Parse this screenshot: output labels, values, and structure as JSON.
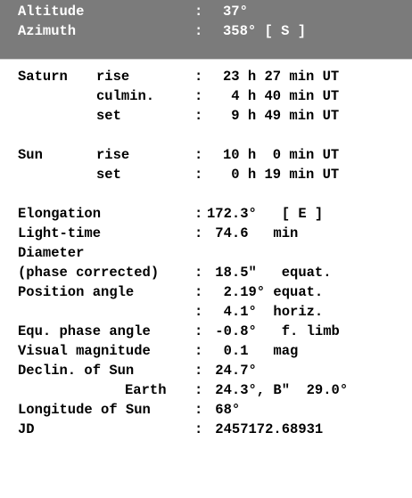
{
  "header": {
    "altitude_label": "Altitude",
    "altitude_value": "37°",
    "azimuth_label": "Azimuth",
    "azimuth_value": "358° [ S ]"
  },
  "saturn": {
    "name": "Saturn",
    "rise_label": "rise",
    "rise_value": "23 h 27 min UT",
    "culmin_label": "culmin.",
    "culmin_value": " 4 h 40 min UT",
    "set_label": "set",
    "set_value": " 9 h 49 min UT"
  },
  "sun": {
    "name": "Sun",
    "rise_label": "rise",
    "rise_value": "10 h  0 min UT",
    "set_label": "set",
    "set_value": " 0 h 19 min UT"
  },
  "details": {
    "elongation_label": "Elongation",
    "elongation_value": "172.3°   [ E ]",
    "light_time_label": "Light-time",
    "light_time_value": " 74.6   min",
    "diameter_label": "Diameter",
    "phase_corrected_label": "(phase corrected)",
    "phase_corrected_value": " 18.5\"   equat.",
    "position_angle_label": "Position angle",
    "position_angle_equat_value": "  2.19° equat.",
    "position_angle_horiz_value": "  4.1°  horiz.",
    "equ_phase_angle_label": "Equ. phase angle",
    "equ_phase_angle_value": " -0.8°   f. limb",
    "visual_magnitude_label": "Visual magnitude",
    "visual_magnitude_value": "  0.1   mag",
    "declin_sun_label": "Declin. of Sun",
    "declin_sun_value": " 24.7°",
    "earth_label": "Earth",
    "earth_value": " 24.3°, B\"  29.0°",
    "longitude_sun_label": "Longitude of Sun",
    "longitude_sun_value": " 68°",
    "jd_label": "JD",
    "jd_value": " 2457172.68931"
  },
  "colon": ":"
}
